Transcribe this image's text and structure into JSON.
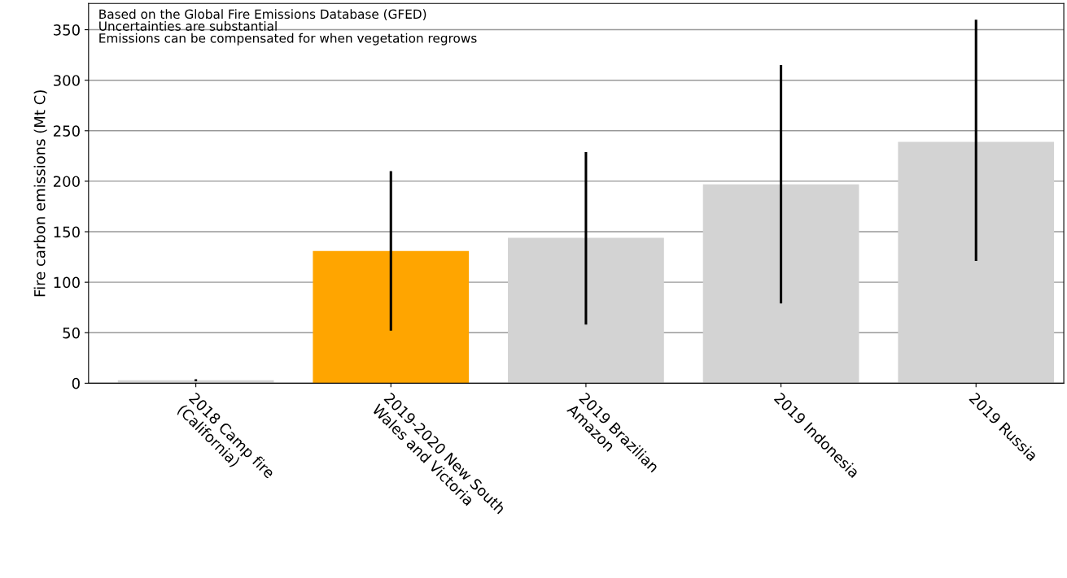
{
  "chart_data": {
    "type": "bar",
    "categories": [
      "2018 Camp fire\n(California)",
      "2019-2020 New South\nWales and Victoria",
      "2019 Brazilian\nAmazon",
      "2019 Indonesia",
      "2019 Russia"
    ],
    "values": [
      3,
      131,
      144,
      197,
      239
    ],
    "colors": [
      "#d3d3d3",
      "#ffa500",
      "#d3d3d3",
      "#d3d3d3",
      "#d3d3d3"
    ],
    "errors": [
      [
        2,
        4
      ],
      [
        52,
        210
      ],
      [
        58,
        229
      ],
      [
        79,
        315
      ],
      [
        121,
        360
      ]
    ],
    "ylabel": "Fire carbon emissions (Mt C)",
    "ylim": [
      0,
      376
    ],
    "yticks": [
      0,
      50,
      100,
      150,
      200,
      250,
      300,
      350
    ],
    "grid": "y",
    "annotations": [
      "Based on the Global Fire Emissions Database (GFED)",
      "Uncertainties are substantial",
      "Emissions can be compensated for when vegetation regrows"
    ]
  }
}
